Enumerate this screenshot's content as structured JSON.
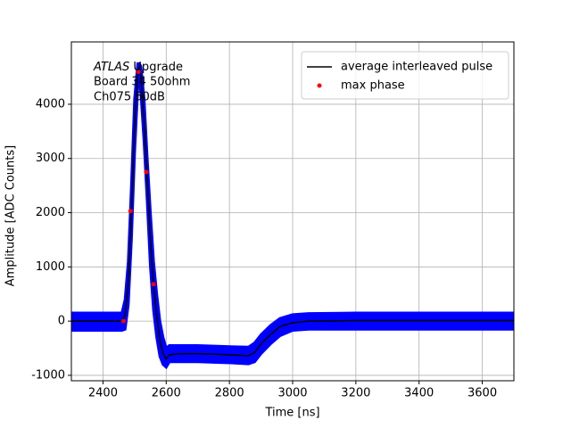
{
  "chart_data": {
    "type": "line",
    "xlabel": "Time [ns]",
    "ylabel": "Amplitude [ADC Counts]",
    "annotation_italic": "ATLAS",
    "annotation": [
      "Upgrade",
      "Board 34 50ohm",
      "Ch075 60dB"
    ],
    "xlim": [
      2300,
      3700
    ],
    "ylim": [
      -1100,
      5150
    ],
    "xticks": [
      2400,
      2600,
      2800,
      3000,
      3200,
      3400,
      3600
    ],
    "yticks": [
      -1000,
      0,
      1000,
      2000,
      3000,
      4000
    ],
    "grid": true,
    "legend": "upper right",
    "band": {
      "color": "#0000ff",
      "x": [
        2300,
        2460,
        2470,
        2480,
        2490,
        2500,
        2510,
        2515,
        2520,
        2530,
        2540,
        2550,
        2560,
        2570,
        2580,
        2590,
        2600,
        2610,
        2650,
        2700,
        2800,
        2860,
        2880,
        2900,
        2930,
        2960,
        3000,
        3050,
        3200,
        3700
      ],
      "upper": [
        150,
        150,
        400,
        1100,
        2500,
        4100,
        4750,
        4750,
        4700,
        4100,
        3000,
        2000,
        1100,
        500,
        0,
        -300,
        -500,
        -450,
        -450,
        -450,
        -470,
        -480,
        -400,
        -250,
        -80,
        50,
        120,
        140,
        150,
        150
      ],
      "lower": [
        -170,
        -170,
        -150,
        300,
        1500,
        3100,
        4300,
        4500,
        4200,
        3300,
        2200,
        1000,
        200,
        -300,
        -650,
        -800,
        -850,
        -750,
        -750,
        -750,
        -770,
        -790,
        -750,
        -600,
        -420,
        -270,
        -170,
        -150,
        -150,
        -150
      ]
    },
    "series": [
      {
        "name": "average interleaved pulse",
        "color": "#000000",
        "kind": "line",
        "x": [
          2300,
          2460,
          2470,
          2480,
          2490,
          2500,
          2510,
          2515,
          2520,
          2530,
          2540,
          2550,
          2560,
          2570,
          2580,
          2590,
          2600,
          2610,
          2650,
          2700,
          2800,
          2860,
          2880,
          2900,
          2930,
          2960,
          3000,
          3050,
          3200,
          3700
        ],
        "values": [
          0,
          0,
          100,
          700,
          2000,
          3600,
          4600,
          4680,
          4500,
          3700,
          2600,
          1500,
          650,
          100,
          -350,
          -600,
          -700,
          -620,
          -600,
          -600,
          -620,
          -640,
          -580,
          -420,
          -250,
          -100,
          -30,
          0,
          10,
          10
        ]
      },
      {
        "name": "max phase",
        "color": "#ff0000",
        "kind": "points",
        "x": [
          2465,
          2487,
          2512,
          2537,
          2560
        ],
        "values": [
          0,
          2030,
          4600,
          2750,
          680
        ]
      }
    ]
  }
}
